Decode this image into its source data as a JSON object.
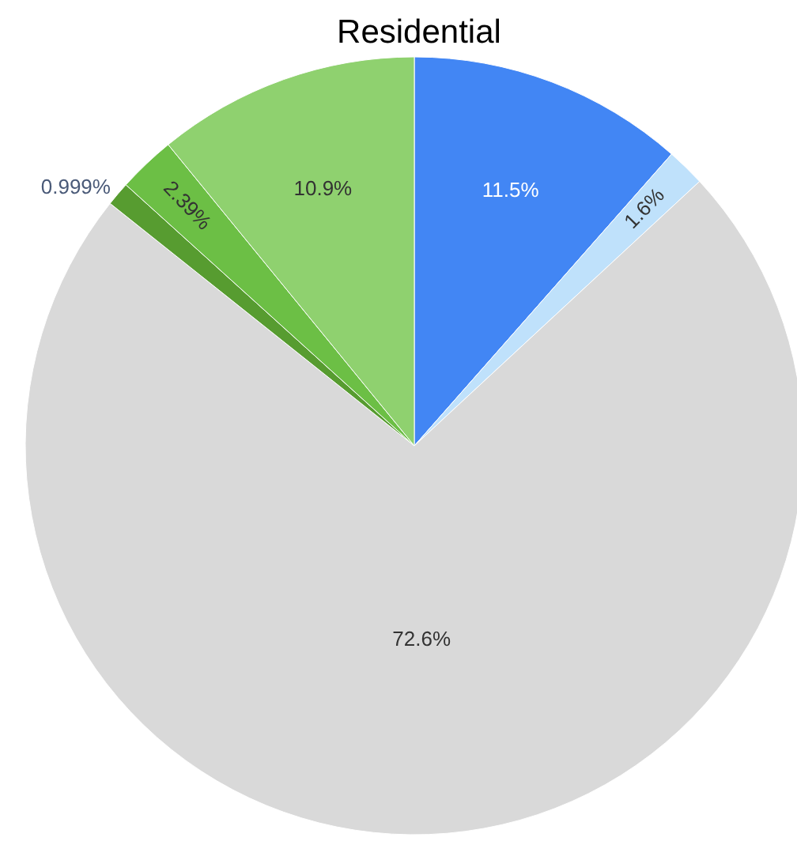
{
  "chart_data": {
    "type": "pie",
    "title": "Residential",
    "categories": [
      null,
      null,
      null,
      null,
      null,
      null
    ],
    "values": [
      11.5,
      1.6,
      72.6,
      0.999,
      2.39,
      10.9
    ],
    "colors": [
      "#4286f4",
      "#bfe1fb",
      "#d9d9d9",
      "#579c30",
      "#6cbf45",
      "#8fd16f"
    ],
    "value_labels": [
      "11.5%",
      "1.6%",
      "72.6%",
      "0.999%",
      "2.39%",
      "10.9%"
    ]
  }
}
